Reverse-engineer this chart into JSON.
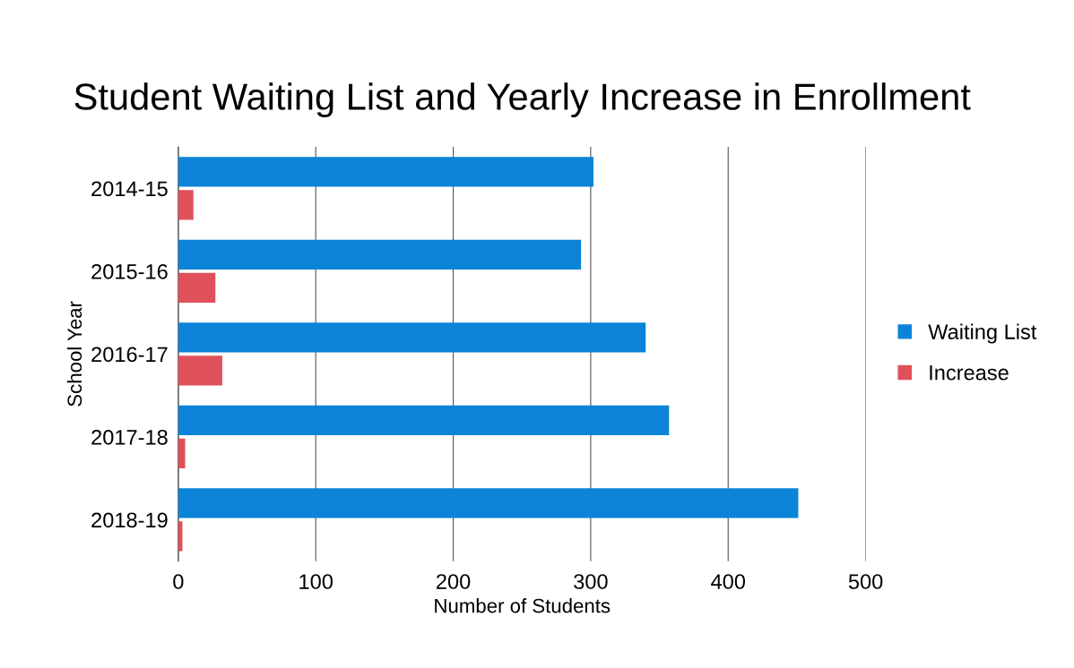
{
  "chart_data": {
    "type": "bar",
    "orientation": "horizontal",
    "title": "Student Waiting List and Yearly Increase in Enrollment",
    "xlabel": "Number of Students",
    "ylabel": "School Year",
    "categories": [
      "2014-15",
      "2015-16",
      "2016-17",
      "2017-18",
      "2018-19"
    ],
    "series": [
      {
        "name": "Waiting List",
        "color": "#0b84d8",
        "values": [
          302,
          293,
          340,
          357,
          451
        ]
      },
      {
        "name": "Increase",
        "color": "#e0505a",
        "values": [
          11,
          27,
          32,
          5,
          3
        ]
      }
    ],
    "xlim": [
      0,
      500
    ],
    "xticks": [
      0,
      100,
      200,
      300,
      400,
      500
    ],
    "grid": "x",
    "legend": "right"
  }
}
